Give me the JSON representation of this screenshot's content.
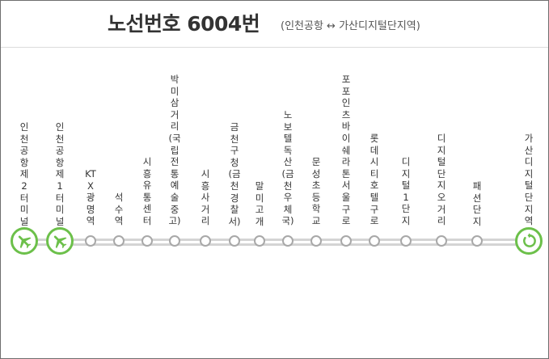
{
  "header": {
    "title": "노선번호 6004번",
    "subtitle": "(인천공항 ↔ 가산디지털단지역)"
  },
  "route": {
    "line_color": "#d4d4d4",
    "accent_color": "#6cc04a",
    "stops": [
      {
        "id": "incheon-airport-t2",
        "label": "인천공항제2터미널",
        "marker": "airplane-icon"
      },
      {
        "id": "incheon-airport-t1",
        "label": "인천공항제1터미널",
        "marker": "airplane-icon"
      },
      {
        "id": "ktx-gwangmyeong",
        "label": "KTX광명역",
        "marker": "stop"
      },
      {
        "id": "seoksu",
        "label": "석수역",
        "marker": "stop"
      },
      {
        "id": "siheung-yutong",
        "label": "시흥유통센터",
        "marker": "stop"
      },
      {
        "id": "bakmisageori",
        "label": "박미삼거리(국립전통예술중고)",
        "marker": "stop"
      },
      {
        "id": "siheung-sageori",
        "label": "시흥사거리",
        "marker": "stop"
      },
      {
        "id": "geumcheon-gucheong",
        "label": "금천구청(금천경찰서)",
        "marker": "stop"
      },
      {
        "id": "malmigogae",
        "label": "말미고개",
        "marker": "stop"
      },
      {
        "id": "novotel-doksan",
        "label": "노보텔독산(금천우체국)",
        "marker": "stop"
      },
      {
        "id": "munseong-elementary",
        "label": "문성초등학교",
        "marker": "stop"
      },
      {
        "id": "four-points",
        "label": "포포인츠바이쉐라톤서울구로",
        "marker": "stop"
      },
      {
        "id": "lotte-city-hotel",
        "label": "롯데시티호텔구로",
        "marker": "stop"
      },
      {
        "id": "digital-1danji",
        "label": "디지털1단지",
        "marker": "stop"
      },
      {
        "id": "digital-ogeori",
        "label": "디지털단지오거리",
        "marker": "stop"
      },
      {
        "id": "fashion-danji",
        "label": "패션단지",
        "marker": "stop"
      },
      {
        "id": "gasan-digital",
        "label": "가산디지털단지역",
        "marker": "turnaround-icon"
      }
    ]
  }
}
